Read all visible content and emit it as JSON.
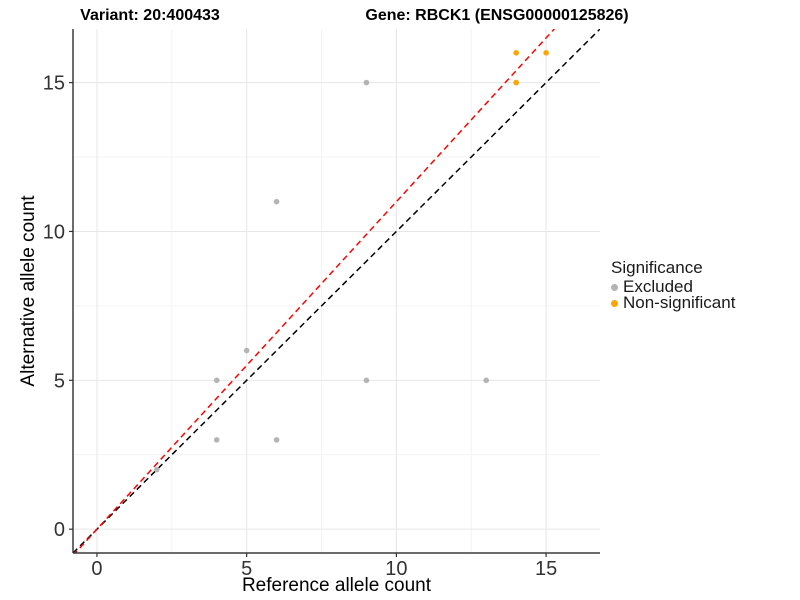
{
  "titles": {
    "variant": "Variant: 20:400433",
    "gene": "Gene: RBCK1 (ENSG00000125826)"
  },
  "chart_data": {
    "type": "scatter",
    "xlabel": "Reference allele count",
    "ylabel": "Alternative allele count",
    "xlim": [
      -0.8,
      16.8
    ],
    "ylim": [
      -0.8,
      16.8
    ],
    "x_ticks": [
      0,
      5,
      10,
      15
    ],
    "y_ticks": [
      0,
      5,
      10,
      15
    ],
    "x_minor_ticks": [
      2.5,
      7.5,
      12.5
    ],
    "y_minor_ticks": [
      2.5,
      7.5,
      12.5
    ],
    "grid": true,
    "legend_position": "right",
    "series": [
      {
        "name": "Excluded",
        "color": "#b4b4b4",
        "points": [
          [
            2,
            2
          ],
          [
            4,
            3
          ],
          [
            6,
            3
          ],
          [
            4,
            5
          ],
          [
            9,
            5
          ],
          [
            13,
            5
          ],
          [
            5,
            6
          ],
          [
            6,
            11
          ],
          [
            9,
            15
          ]
        ]
      },
      {
        "name": "Non-significant",
        "color": "#FFA500",
        "points": [
          [
            14,
            15
          ],
          [
            14,
            16
          ],
          [
            15,
            16
          ]
        ]
      }
    ],
    "lines": [
      {
        "name": "identity-line",
        "color": "#000000",
        "dash": "6 4",
        "from": [
          -0.8,
          -0.8
        ],
        "to": [
          16.8,
          16.8
        ]
      },
      {
        "name": "fit-line",
        "color": "#ff0000",
        "dash": "6 4",
        "from": [
          -0.8,
          -0.88
        ],
        "to": [
          16.8,
          18.48
        ]
      }
    ],
    "legend": {
      "title": "Significance",
      "items": [
        {
          "label": "Excluded",
          "color": "#b4b4b4"
        },
        {
          "label": "Non-significant",
          "color": "#FFA500"
        }
      ]
    },
    "style": {
      "grid_major_color": "#e6e6e6",
      "grid_minor_color": "#f3f3f3",
      "axis_line_color": "#3c3c3c",
      "tick_color": "#333333",
      "tick_label_color": "#333333",
      "axis_title_color": "#000000"
    }
  }
}
